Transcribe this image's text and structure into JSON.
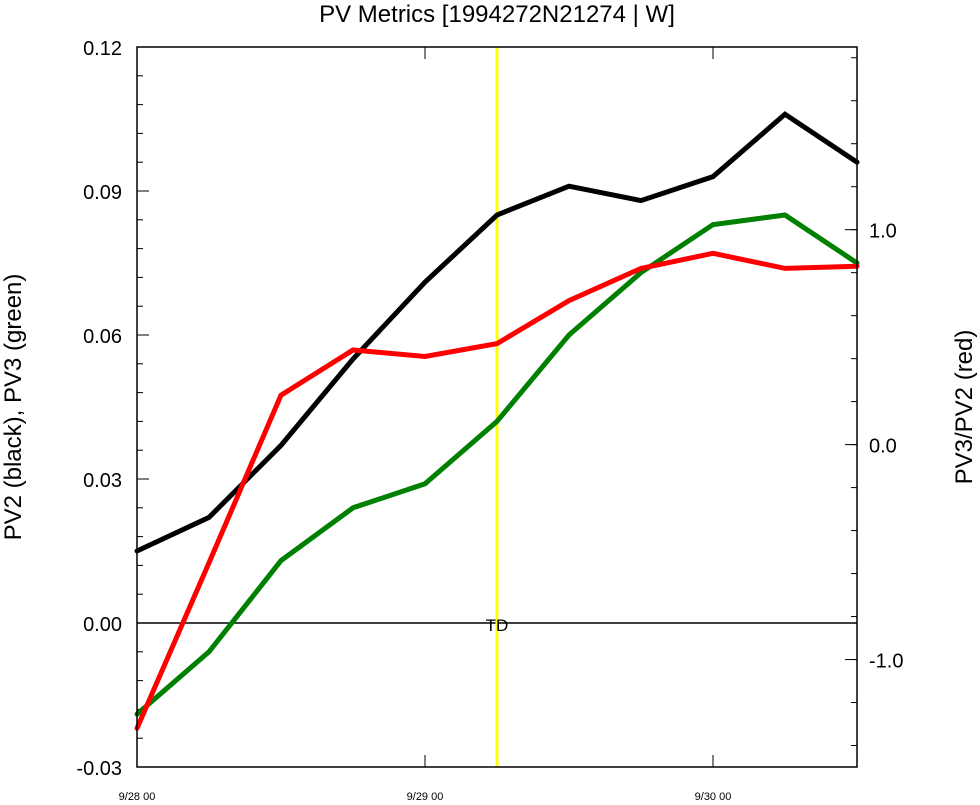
{
  "chart_data": {
    "type": "line",
    "title": "PV Metrics [1994272N21274 | W]",
    "ylabel": "PV2 (black), PV3 (green)",
    "y2label": "PV3/PV2 (red)",
    "x_ticks": [
      {
        "x": 0,
        "label": "9/28 00"
      },
      {
        "x": 4,
        "label": "9/29 00"
      },
      {
        "x": 8,
        "label": "9/30 00"
      }
    ],
    "xlim": [
      0,
      10
    ],
    "ylim": [
      -0.03,
      0.12
    ],
    "y2lim": [
      -1.5,
      1.85
    ],
    "y_ticks": [
      {
        "v": -0.03,
        "label": "-0.03"
      },
      {
        "v": 0.0,
        "label": "0.00"
      },
      {
        "v": 0.03,
        "label": "0.03"
      },
      {
        "v": 0.06,
        "label": "0.06"
      },
      {
        "v": 0.09,
        "label": "0.09"
      },
      {
        "v": 0.12,
        "label": "0.12"
      }
    ],
    "y2_ticks": [
      {
        "v": -1.0,
        "label": "-1.0"
      },
      {
        "v": 0.0,
        "label": "0.0"
      },
      {
        "v": 1.0,
        "label": "1.0"
      }
    ],
    "series": [
      {
        "axis": "left",
        "color": "#000000",
        "x": [
          0,
          1,
          2,
          3,
          4,
          5,
          6,
          7,
          8,
          9,
          10
        ],
        "values": [
          0.015,
          0.022,
          0.037,
          0.055,
          0.071,
          0.085,
          0.091,
          0.088,
          0.093,
          0.106,
          0.096
        ]
      },
      {
        "axis": "left",
        "color": "#008000",
        "x": [
          0,
          1,
          2,
          3,
          4,
          5,
          6,
          7,
          8,
          9,
          10
        ],
        "values": [
          -0.019,
          -0.006,
          0.013,
          0.024,
          0.029,
          0.042,
          0.06,
          0.073,
          0.083,
          0.085,
          0.075
        ]
      },
      {
        "axis": "right",
        "color": "#ff0000",
        "x": [
          0,
          1,
          2,
          3,
          4,
          5,
          6,
          7,
          8,
          9,
          10
        ],
        "values": [
          -1.32,
          -0.55,
          0.23,
          0.44,
          0.41,
          0.47,
          0.67,
          0.82,
          0.89,
          0.82,
          0.83
        ]
      }
    ],
    "zero_line": 0,
    "event_marker": {
      "x": 5,
      "label": "TD",
      "color": "#ffff00"
    },
    "grid": false
  }
}
